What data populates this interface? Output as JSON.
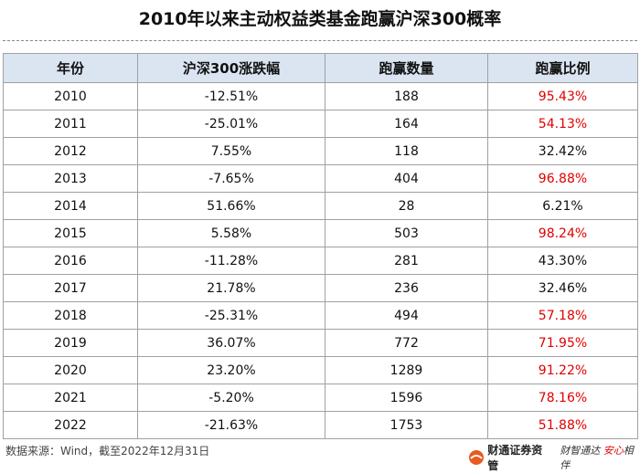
{
  "header": {
    "title": "2010年以来主动权益类基金跑赢沪深300概率"
  },
  "table": {
    "columns": [
      "年份",
      "沪深300涨跌幅",
      "跑赢数量",
      "跑赢比例"
    ],
    "rows": [
      [
        "2010",
        "-12.51%",
        "188",
        "95.43%"
      ],
      [
        "2011",
        "-25.01%",
        "164",
        "54.13%"
      ],
      [
        "2012",
        "7.55%",
        "118",
        "32.42%"
      ],
      [
        "2013",
        "-7.65%",
        "404",
        "96.88%"
      ],
      [
        "2014",
        "51.66%",
        "28",
        "6.21%"
      ],
      [
        "2015",
        "5.58%",
        "503",
        "98.24%"
      ],
      [
        "2016",
        "-11.28%",
        "281",
        "43.30%"
      ],
      [
        "2017",
        "21.78%",
        "236",
        "32.46%"
      ],
      [
        "2018",
        "-25.31%",
        "494",
        "57.18%"
      ],
      [
        "2019",
        "36.07%",
        "772",
        "71.95%"
      ],
      [
        "2020",
        "23.20%",
        "1289",
        "91.22%"
      ],
      [
        "2021",
        "-5.20%",
        "1596",
        "78.16%"
      ],
      [
        "2022",
        "-21.63%",
        "1753",
        "51.88%"
      ]
    ],
    "highlight_color": "#e00000"
  },
  "footer": {
    "source": "数据来源：Wind，截至2022年12月31日",
    "brand": "财通证券资管",
    "slogan": [
      "财智通达",
      "安心",
      "相伴"
    ]
  }
}
